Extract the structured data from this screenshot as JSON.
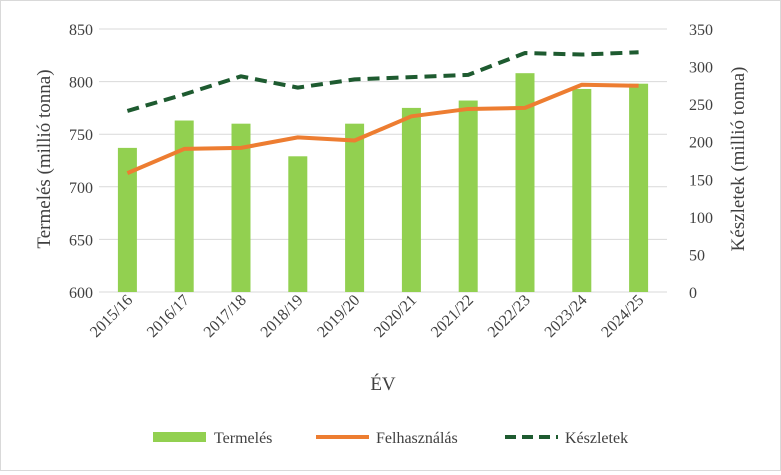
{
  "chart_data": {
    "type": "bar",
    "categories": [
      "2015/16",
      "2016/17",
      "2017/18",
      "2018/19",
      "2019/20",
      "2020/21",
      "2021/22",
      "2022/23",
      "2023/24",
      "2024/25"
    ],
    "series": [
      {
        "name": "Termelés",
        "type": "bar",
        "axis": "left",
        "color": "#92d050",
        "values": [
          737,
          763,
          760,
          729,
          760,
          775,
          782,
          808,
          793,
          798
        ]
      },
      {
        "name": "Felhasználás",
        "type": "line",
        "axis": "left",
        "style": "solid",
        "color": "#ed7d31",
        "values": [
          713,
          736,
          737,
          747,
          744,
          767,
          774,
          775,
          797,
          796
        ]
      },
      {
        "name": "Készletek",
        "type": "line",
        "axis": "right",
        "style": "dashed",
        "color": "#1e5b30",
        "values": [
          241,
          263,
          287,
          272,
          283,
          286,
          289,
          318,
          316,
          319
        ]
      }
    ],
    "xlabel": "ÉV",
    "ylabel": "Termelés (millió tonna)",
    "y2label": "Készletek (millió tonna)",
    "ylim": [
      600,
      850
    ],
    "y2lim": [
      0,
      350
    ],
    "yticks": [
      "600",
      "650",
      "700",
      "750",
      "800",
      "850"
    ],
    "y2ticks": [
      "0",
      "50",
      "100",
      "150",
      "200",
      "250",
      "300",
      "350"
    ],
    "grid": true,
    "legend": "bottom"
  }
}
